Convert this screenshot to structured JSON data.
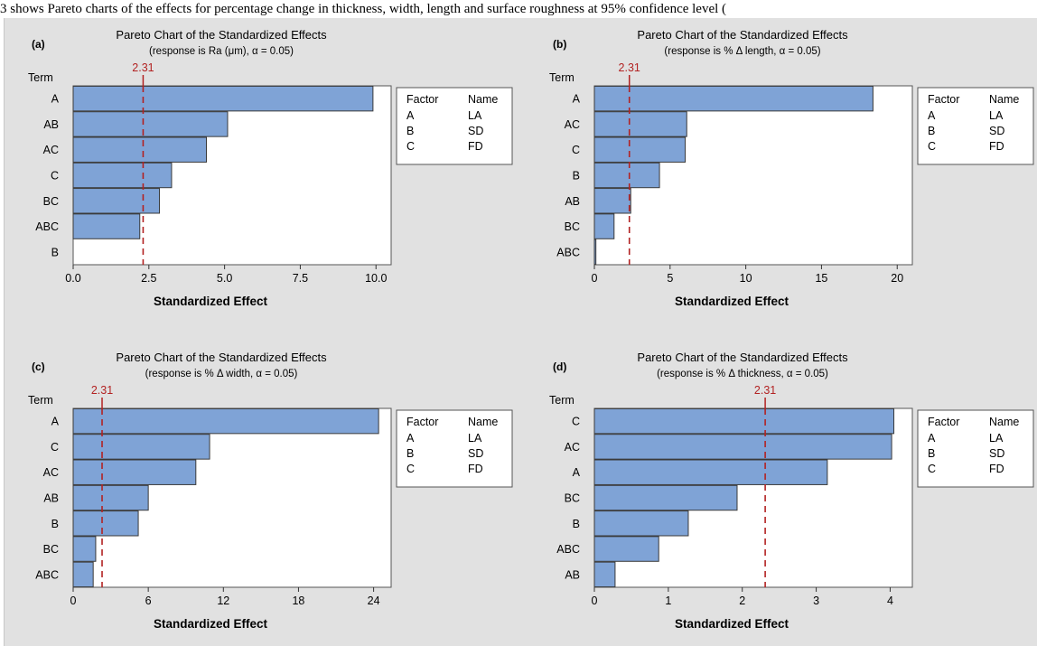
{
  "caption": "3 shows Pareto charts of the effects for percentage change in thickness, width, length and surface roughness at 95% confidence level (",
  "colors": {
    "bar": "#7fa3d6",
    "bar_edge": "#3a3a3a",
    "reference_line": "#b22222",
    "figure_bg": "#e1e1e1",
    "plot_bg": "#ffffff"
  },
  "legend": {
    "headers": [
      "Factor",
      "Name"
    ],
    "rows": [
      [
        "A",
        "LA"
      ],
      [
        "B",
        "SD"
      ],
      [
        "C",
        "FD"
      ]
    ]
  },
  "chart_data": [
    {
      "panel": "(a)",
      "type": "bar",
      "orientation": "horizontal",
      "title": "Pareto Chart of the Standardized Effects",
      "subtitle": "(response is Ra (μm), α = 0.05)",
      "term_label": "Term",
      "xlabel": "Standardized Effect",
      "categories": [
        "A",
        "AB",
        "AC",
        "C",
        "BC",
        "ABC",
        "B"
      ],
      "values": [
        9.9,
        5.1,
        4.4,
        3.25,
        2.85,
        2.2,
        0
      ],
      "reference": 2.31,
      "reference_label": "2.31",
      "xlim": [
        0,
        10.5
      ],
      "xticks": [
        0,
        2.5,
        5,
        7.5,
        10
      ],
      "xtick_labels": [
        "0.0",
        "2.5",
        "5.0",
        "7.5",
        "10.0"
      ]
    },
    {
      "panel": "(b)",
      "type": "bar",
      "orientation": "horizontal",
      "title": "Pareto Chart of the Standardized Effects",
      "subtitle": "(response is % Δ length, α = 0.05)",
      "term_label": "Term",
      "xlabel": "Standardized Effect",
      "categories": [
        "A",
        "AC",
        "C",
        "B",
        "AB",
        "BC",
        "ABC"
      ],
      "values": [
        18.4,
        6.1,
        6.0,
        4.3,
        2.4,
        1.3,
        0.1
      ],
      "reference": 2.31,
      "reference_label": "2.31",
      "xlim": [
        0,
        21
      ],
      "xticks": [
        0,
        5,
        10,
        15,
        20
      ],
      "xtick_labels": [
        "0",
        "5",
        "10",
        "15",
        "20"
      ]
    },
    {
      "panel": "(c)",
      "type": "bar",
      "orientation": "horizontal",
      "title": "Pareto Chart of the Standardized Effects",
      "subtitle": "(response is % Δ width, α = 0.05)",
      "term_label": "Term",
      "xlabel": "Standardized Effect",
      "categories": [
        "A",
        "C",
        "AC",
        "AB",
        "B",
        "BC",
        "ABC"
      ],
      "values": [
        24.4,
        10.9,
        9.8,
        6.0,
        5.2,
        1.8,
        1.6
      ],
      "reference": 2.31,
      "reference_label": "2.31",
      "xlim": [
        0,
        25.4
      ],
      "xticks": [
        0,
        6,
        12,
        18,
        24
      ],
      "xtick_labels": [
        "0",
        "6",
        "12",
        "18",
        "24"
      ]
    },
    {
      "panel": "(d)",
      "type": "bar",
      "orientation": "horizontal",
      "title": "Pareto Chart of the Standardized Effects",
      "subtitle": "(response is % Δ thickness, α = 0.05)",
      "term_label": "Term",
      "xlabel": "Standardized Effect",
      "categories": [
        "C",
        "AC",
        "A",
        "BC",
        "B",
        "ABC",
        "AB"
      ],
      "values": [
        4.05,
        4.02,
        3.15,
        1.93,
        1.27,
        0.87,
        0.28
      ],
      "reference": 2.31,
      "reference_label": "2.31",
      "xlim": [
        0,
        4.3
      ],
      "xticks": [
        0,
        1,
        2,
        3,
        4
      ],
      "xtick_labels": [
        "0",
        "1",
        "2",
        "3",
        "4"
      ]
    }
  ]
}
